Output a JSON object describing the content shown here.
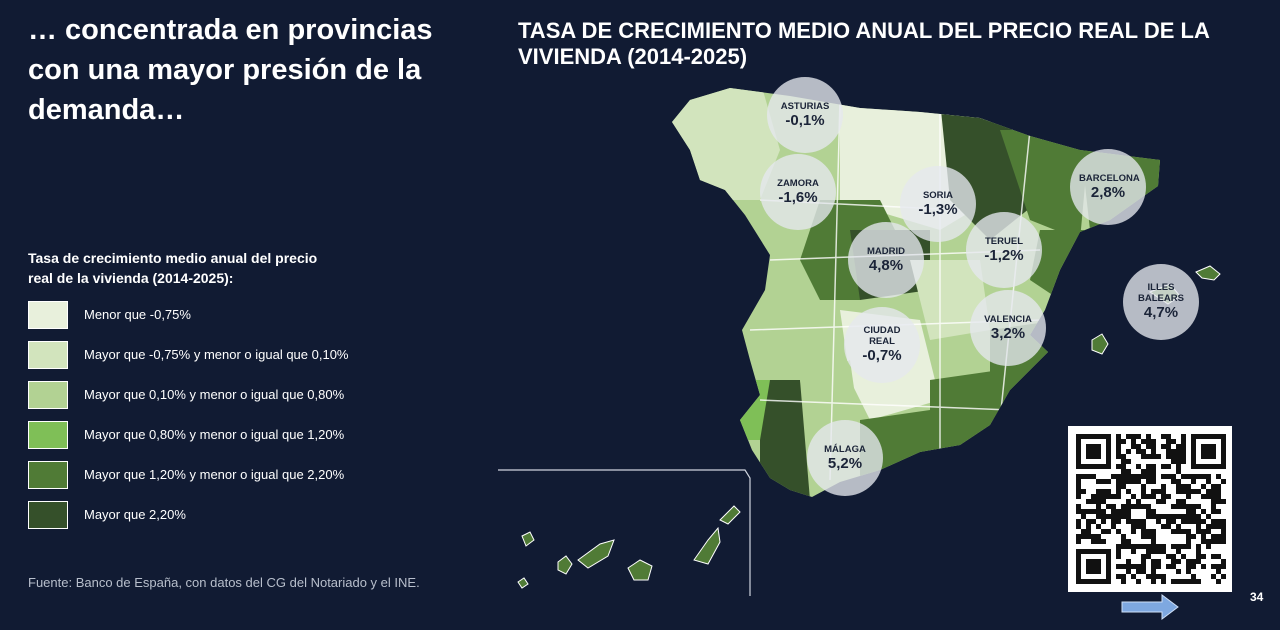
{
  "heading": "… concentrada en provincias con una mayor presión de la demanda…",
  "map_title": "TASA DE CRECIMIENTO MEDIO ANUAL DEL PRECIO REAL DE LA VIVIENDA (2014-2025)",
  "legend": {
    "title": "Tasa de crecimiento medio anual del precio real de la vivienda (2014-2025):",
    "items": [
      {
        "label": "Menor que -0,75%",
        "color": "#e8f0dc"
      },
      {
        "label": "Mayor que  -0,75% y menor o igual que 0,10%",
        "color": "#d2e4bd"
      },
      {
        "label": "Mayor que 0,10% y menor o igual que 0,80%",
        "color": "#b2d293"
      },
      {
        "label": "Mayor que 0,80% y menor o igual que 1,20%",
        "color": "#7fbf57"
      },
      {
        "label": "Mayor que 1,20% y menor o igual que 2,20%",
        "color": "#507b36"
      },
      {
        "label": "Mayor que 2,20%",
        "color": "#35502a"
      }
    ]
  },
  "callouts": [
    {
      "name": "ASTURIAS",
      "value": "-0,1%"
    },
    {
      "name": "ZAMORA",
      "value": "-1,6%"
    },
    {
      "name": "SORIA",
      "value": "-1,3%"
    },
    {
      "name": "BARCELONA",
      "value": "2,8%"
    },
    {
      "name": "MADRID",
      "value": "4,8%"
    },
    {
      "name": "TERUEL",
      "value": "-1,2%"
    },
    {
      "name": "ILLES BALEARS",
      "value": "4,7%"
    },
    {
      "name": "VALENCIA",
      "value": "3,2%"
    },
    {
      "name": "CIUDAD REAL",
      "value": "-0,7%"
    },
    {
      "name": "MÁLAGA",
      "value": "5,2%"
    }
  ],
  "source": "Fuente: Banco de España, con datos del CG del Notariado y el INE.",
  "page_number": "34"
}
